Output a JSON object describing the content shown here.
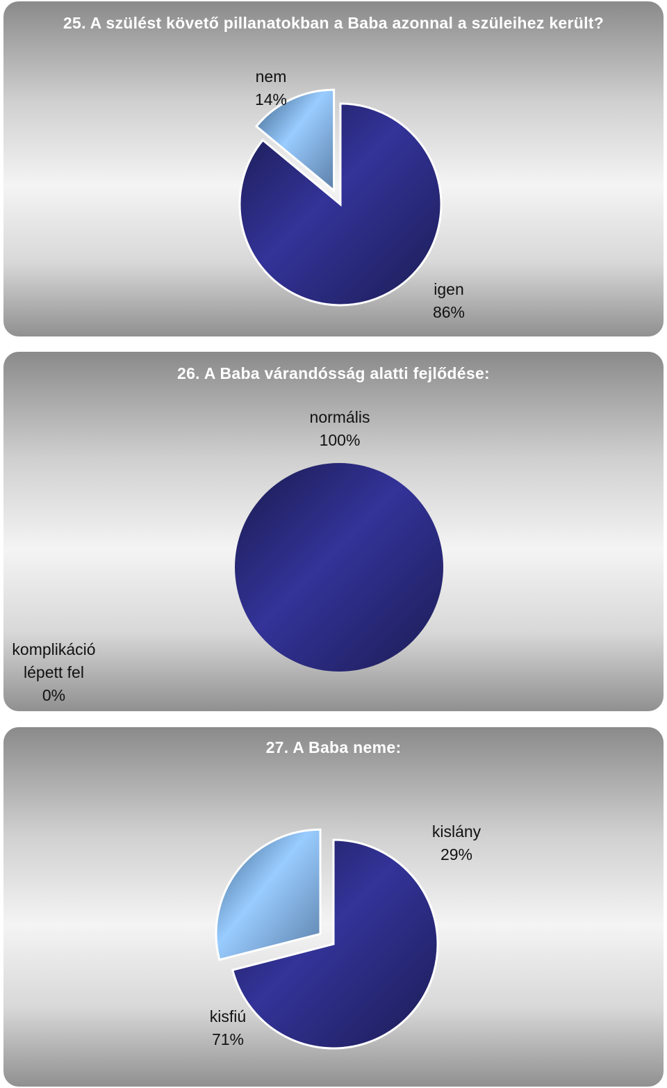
{
  "chart_data": [
    {
      "type": "pie",
      "title": "25. A szülést követő pillanatokban a Baba azonnal a szüleihez került?",
      "slices": [
        {
          "name": "igen",
          "value": 86,
          "label": "igen\n86%",
          "color": "#333399"
        },
        {
          "name": "nem",
          "value": 14,
          "label": "nem\n14%",
          "color": "#99ccff",
          "exploded": true
        }
      ]
    },
    {
      "type": "pie",
      "title": "26. A Baba várandósság alatti fejlődése:",
      "slices": [
        {
          "name": "normális",
          "value": 100,
          "label": "normális\n100%",
          "color": "#333399"
        },
        {
          "name": "komplikáció lépett fel",
          "value": 0,
          "label": "komplikáció\nlépett fel\n0%",
          "color": "#99ccff"
        }
      ]
    },
    {
      "type": "pie",
      "title": "27. A Baba neme:",
      "slices": [
        {
          "name": "kisfiú",
          "value": 71,
          "label": "kisfiú\n71%",
          "color": "#333399"
        },
        {
          "name": "kislány",
          "value": 29,
          "label": "kislány\n29%",
          "color": "#99ccff",
          "exploded": true
        }
      ]
    }
  ]
}
